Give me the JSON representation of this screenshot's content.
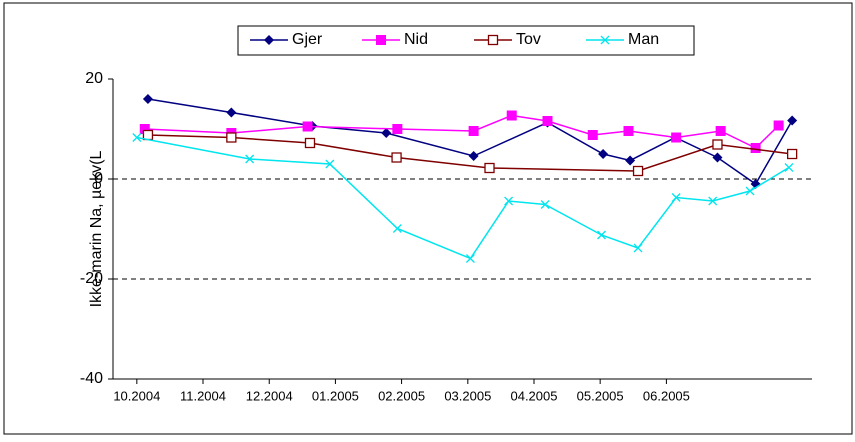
{
  "chart_data": {
    "type": "line",
    "y_label": "Ikke-marin Na, µekv(L",
    "xlim": [
      2004.72,
      2005.6
    ],
    "ylim": [
      -40,
      20
    ],
    "yticks": [
      20,
      0,
      -20,
      -40
    ],
    "xticks": [
      {
        "value": 2004.75,
        "label": "10.2004"
      },
      {
        "value": 2004.8333,
        "label": "11.2004"
      },
      {
        "value": 2004.9167,
        "label": "12.2004"
      },
      {
        "value": 2005.0,
        "label": "01.2005"
      },
      {
        "value": 2005.0833,
        "label": "02.2005"
      },
      {
        "value": 2005.1667,
        "label": "03.2005"
      },
      {
        "value": 2005.25,
        "label": "04.2005"
      },
      {
        "value": 2005.3333,
        "label": "05.2005"
      },
      {
        "value": 2005.4167,
        "label": "06.2005"
      }
    ],
    "grid": true,
    "series": [
      {
        "name": "Gjer",
        "color": "#000080",
        "marker": "diamond",
        "x": [
          2004.764,
          2004.869,
          2004.971,
          2005.064,
          2005.174,
          2005.267,
          2005.337,
          2005.371,
          2005.428,
          2005.481,
          2005.529,
          2005.575
        ],
        "values": [
          16,
          13.3,
          10.6,
          9.2,
          4.6,
          11.3,
          5,
          3.7,
          8.3,
          4.3,
          -1,
          11.7
        ]
      },
      {
        "name": "Nid",
        "color": "#ff00ff",
        "marker": "square",
        "x": [
          2004.76,
          2004.869,
          2004.965,
          2005.078,
          2005.174,
          2005.222,
          2005.267,
          2005.324,
          2005.369,
          2005.429,
          2005.485,
          2005.529,
          2005.558
        ],
        "values": [
          10,
          9.2,
          10.5,
          10,
          9.6,
          12.7,
          11.6,
          8.8,
          9.6,
          8.3,
          9.6,
          6.2,
          10.7
        ]
      },
      {
        "name": "Tov",
        "color": "#800000",
        "marker": "open-square",
        "x": [
          2004.764,
          2004.869,
          2004.968,
          2005.077,
          2005.194,
          2005.381,
          2005.481,
          2005.575
        ],
        "values": [
          8.8,
          8.3,
          7.2,
          4.3,
          2.2,
          1.6,
          6.9,
          5
        ]
      },
      {
        "name": "Man",
        "color": "#00e5ee",
        "marker": "cross",
        "x": [
          2004.75,
          2004.892,
          2004.993,
          2005.078,
          2005.17,
          2005.218,
          2005.264,
          2005.335,
          2005.381,
          2005.429,
          2005.475,
          2005.522,
          2005.571
        ],
        "values": [
          8.3,
          4,
          3,
          -9.9,
          -15.9,
          -4.4,
          -5.1,
          -11.2,
          -13.8,
          -3.7,
          -4.4,
          -2.4,
          2.3
        ]
      }
    ]
  }
}
